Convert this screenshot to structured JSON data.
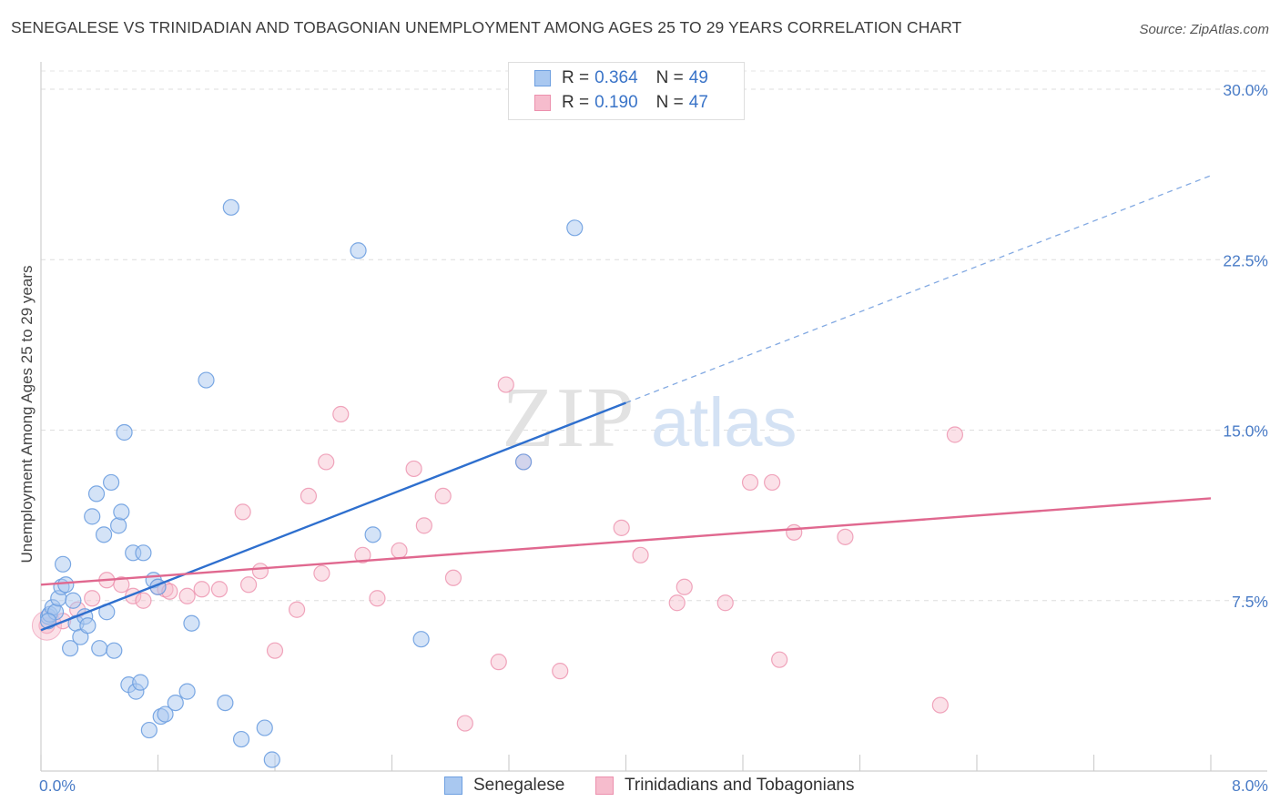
{
  "header": {
    "title": "SENEGALESE VS TRINIDADIAN AND TOBAGONIAN UNEMPLOYMENT AMONG AGES 25 TO 29 YEARS CORRELATION CHART",
    "source": "Source: ZipAtlas.com"
  },
  "watermark": {
    "zip": "ZIP",
    "atlas": "atlas"
  },
  "legend": {
    "r_label": "R =",
    "n_label": "N =",
    "rows": [
      {
        "r": "0.364",
        "n": "49"
      },
      {
        "r": "0.190",
        "n": "47"
      }
    ]
  },
  "colors": {
    "blue_fill": "#a9c8f0",
    "blue_stroke": "#6d9fe0",
    "blue_line": "#2e6fce",
    "pink_fill": "#f6bccd",
    "pink_stroke": "#ec90ad",
    "pink_line": "#e0688f",
    "tick_text": "#4a7cc7"
  },
  "chart_data": {
    "type": "scatter",
    "title": "SENEGALESE VS TRINIDADIAN AND TOBAGONIAN UNEMPLOYMENT AMONG AGES 25 TO 29 YEARS CORRELATION CHART",
    "xlabel": "",
    "ylabel": "Unemployment Among Ages 25 to 29 years",
    "xlim": [
      0.0,
      8.0
    ],
    "ylim": [
      0.0,
      30.0
    ],
    "x_tick_labels": [
      "0.0%",
      "8.0%"
    ],
    "y_tick_labels": [
      "7.5%",
      "15.0%",
      "22.5%",
      "30.0%"
    ],
    "y_ticks": [
      7.5,
      15.0,
      22.5,
      30.0
    ],
    "grid": true,
    "legend_position": "top-center",
    "series": [
      {
        "name": "Senegalese",
        "r": 0.364,
        "n": 49,
        "trend": {
          "x": [
            0.0,
            4.0
          ],
          "y": [
            6.2,
            16.2
          ],
          "dashed_to": [
            8.0,
            26.2
          ]
        },
        "points": [
          [
            0.05,
            6.8
          ],
          [
            0.06,
            6.9
          ],
          [
            0.08,
            7.2
          ],
          [
            0.1,
            7.0
          ],
          [
            0.12,
            7.6
          ],
          [
            0.14,
            8.1
          ],
          [
            0.15,
            9.1
          ],
          [
            0.17,
            8.2
          ],
          [
            0.2,
            5.4
          ],
          [
            0.22,
            7.5
          ],
          [
            0.24,
            6.5
          ],
          [
            0.27,
            5.9
          ],
          [
            0.3,
            6.8
          ],
          [
            0.32,
            6.4
          ],
          [
            0.35,
            11.2
          ],
          [
            0.38,
            12.2
          ],
          [
            0.4,
            5.4
          ],
          [
            0.43,
            10.4
          ],
          [
            0.45,
            7.0
          ],
          [
            0.48,
            12.7
          ],
          [
            0.5,
            5.3
          ],
          [
            0.53,
            10.8
          ],
          [
            0.55,
            11.4
          ],
          [
            0.57,
            14.9
          ],
          [
            0.6,
            3.8
          ],
          [
            0.63,
            9.6
          ],
          [
            0.65,
            3.5
          ],
          [
            0.68,
            3.9
          ],
          [
            0.7,
            9.6
          ],
          [
            0.74,
            1.8
          ],
          [
            0.77,
            8.4
          ],
          [
            0.8,
            8.1
          ],
          [
            0.82,
            2.4
          ],
          [
            0.85,
            2.5
          ],
          [
            0.92,
            3.0
          ],
          [
            1.0,
            3.5
          ],
          [
            1.03,
            6.5
          ],
          [
            1.13,
            17.2
          ],
          [
            1.26,
            3.0
          ],
          [
            1.3,
            24.8
          ],
          [
            1.37,
            1.4
          ],
          [
            1.53,
            1.9
          ],
          [
            1.58,
            0.5
          ],
          [
            2.17,
            22.9
          ],
          [
            2.27,
            10.4
          ],
          [
            2.6,
            5.8
          ],
          [
            3.3,
            13.6
          ],
          [
            3.65,
            23.9
          ],
          [
            0.05,
            6.6
          ]
        ]
      },
      {
        "name": "Trinidadians and Tobagonians",
        "r": 0.19,
        "n": 47,
        "trend": {
          "x": [
            0.0,
            8.0
          ],
          "y": [
            8.2,
            12.0
          ]
        },
        "points": [
          [
            0.04,
            6.4
          ],
          [
            0.15,
            6.6
          ],
          [
            0.25,
            7.1
          ],
          [
            0.35,
            7.6
          ],
          [
            0.45,
            8.4
          ],
          [
            0.55,
            8.2
          ],
          [
            0.63,
            7.7
          ],
          [
            0.7,
            7.5
          ],
          [
            0.8,
            8.1
          ],
          [
            0.85,
            8.0
          ],
          [
            0.88,
            7.9
          ],
          [
            1.0,
            7.7
          ],
          [
            1.1,
            8.0
          ],
          [
            1.22,
            8.0
          ],
          [
            1.38,
            11.4
          ],
          [
            1.42,
            8.2
          ],
          [
            1.5,
            8.8
          ],
          [
            1.6,
            5.3
          ],
          [
            1.75,
            7.1
          ],
          [
            1.83,
            12.1
          ],
          [
            1.92,
            8.7
          ],
          [
            1.95,
            13.6
          ],
          [
            2.05,
            15.7
          ],
          [
            2.2,
            9.5
          ],
          [
            2.3,
            7.6
          ],
          [
            2.45,
            9.7
          ],
          [
            2.55,
            13.3
          ],
          [
            2.62,
            10.8
          ],
          [
            2.75,
            12.1
          ],
          [
            2.82,
            8.5
          ],
          [
            2.9,
            2.1
          ],
          [
            3.13,
            4.8
          ],
          [
            3.18,
            17.0
          ],
          [
            3.3,
            13.6
          ],
          [
            3.55,
            4.4
          ],
          [
            3.97,
            10.7
          ],
          [
            4.1,
            9.5
          ],
          [
            4.35,
            7.4
          ],
          [
            4.4,
            8.1
          ],
          [
            4.68,
            7.4
          ],
          [
            4.85,
            12.7
          ],
          [
            5.0,
            12.7
          ],
          [
            5.05,
            4.9
          ],
          [
            5.15,
            10.5
          ],
          [
            5.5,
            10.3
          ],
          [
            6.15,
            2.9
          ],
          [
            6.25,
            14.8
          ]
        ]
      }
    ]
  },
  "bottom_legend": {
    "items": [
      {
        "label": "Senegalese"
      },
      {
        "label": "Trinidadians and Tobagonians"
      }
    ]
  }
}
